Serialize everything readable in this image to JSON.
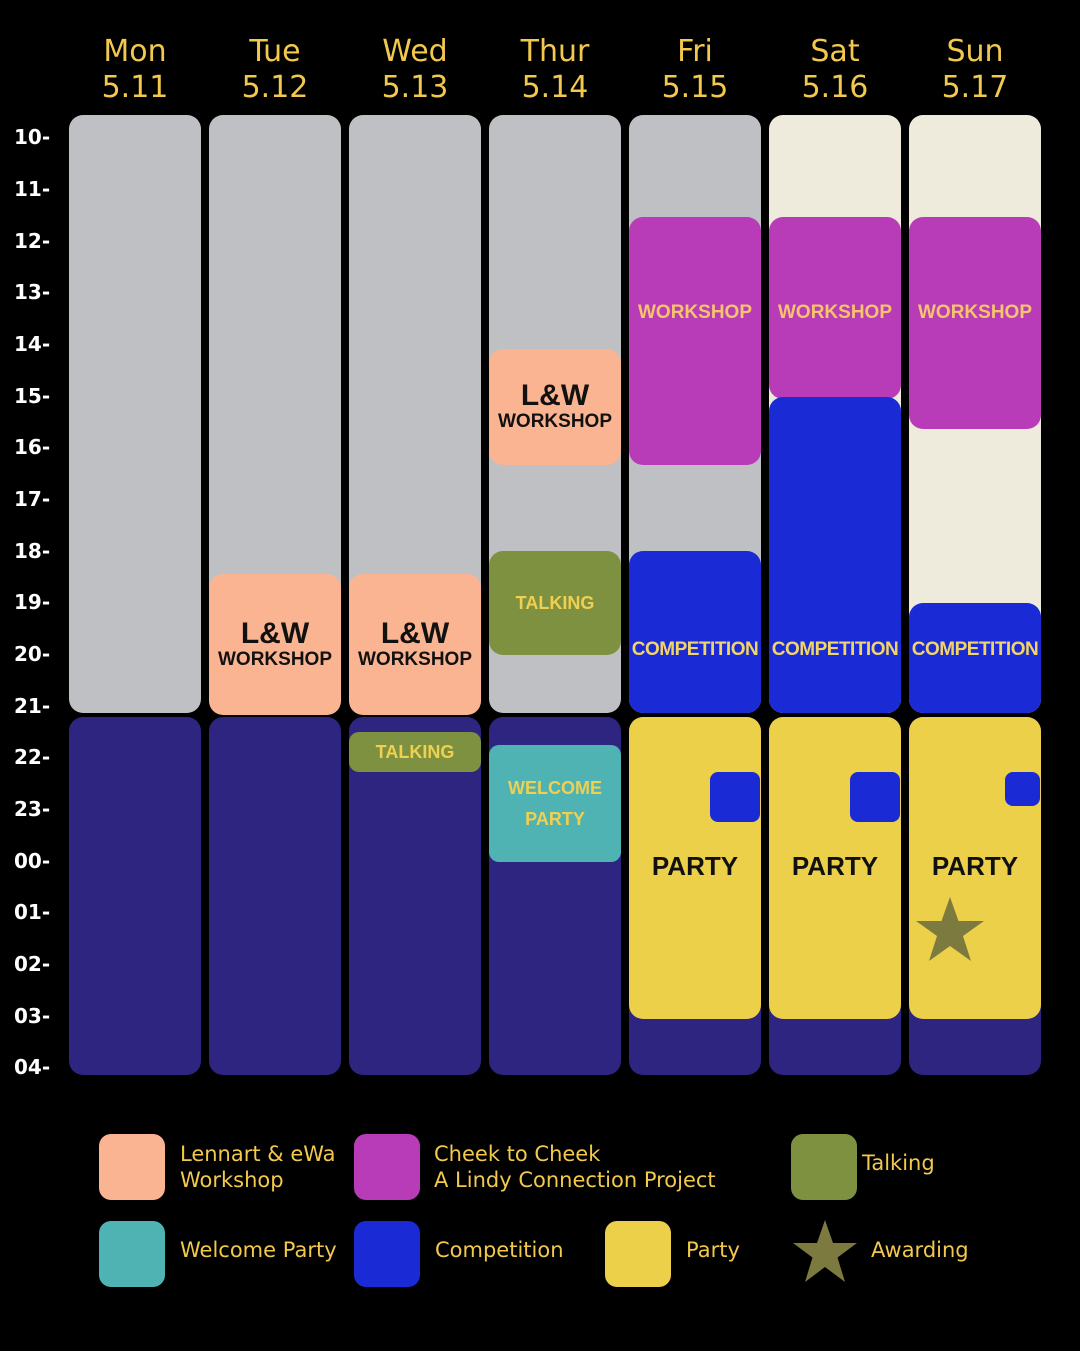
{
  "days": [
    {
      "name": "Mon",
      "date": "5.11"
    },
    {
      "name": "Tue",
      "date": "5.12"
    },
    {
      "name": "Wed",
      "date": "5.13"
    },
    {
      "name": "Thur",
      "date": "5.14"
    },
    {
      "name": "Fri",
      "date": "5.15"
    },
    {
      "name": "Sat",
      "date": "5.16"
    },
    {
      "name": "Sun",
      "date": "5.17"
    }
  ],
  "hours": [
    "10-",
    "11-",
    "12-",
    "13-",
    "14-",
    "15-",
    "16-",
    "17-",
    "18-",
    "19-",
    "20-",
    "21-",
    "22-",
    "23-",
    "00-",
    "01-",
    "02-",
    "03-",
    "04-"
  ],
  "events": {
    "lw_title": "L&W",
    "workshop": "WORKSHOP",
    "talking": "TALKING",
    "welcome_line1": "WELCOME",
    "welcome_line2": "PARTY",
    "competition": "COMPETITION",
    "party": "PARTY"
  },
  "legend": {
    "lw_line1": "Lennart & eWa",
    "lw_line2": "Workshop",
    "c2c_line1": "Cheek to Cheek",
    "c2c_line2": "A Lindy Connection Project",
    "talking": "Talking",
    "welcome": "Welcome Party",
    "competition": "Competition",
    "party": "Party",
    "awarding": "Awarding"
  },
  "colors": {
    "background": "#000000",
    "day_daytime": "#bfc0c3",
    "weekend_daytime": "#eeeadc",
    "night": "#2e2580",
    "lw_workshop": "#fbb491",
    "c2c_workshop": "#b83cb8",
    "talking": "#7e9140",
    "welcome_party": "#4fb3b3",
    "competition": "#1a2bd6",
    "party": "#ecd04a",
    "awarding_star": "#7d7a40",
    "header_text": "#f2c94c"
  }
}
